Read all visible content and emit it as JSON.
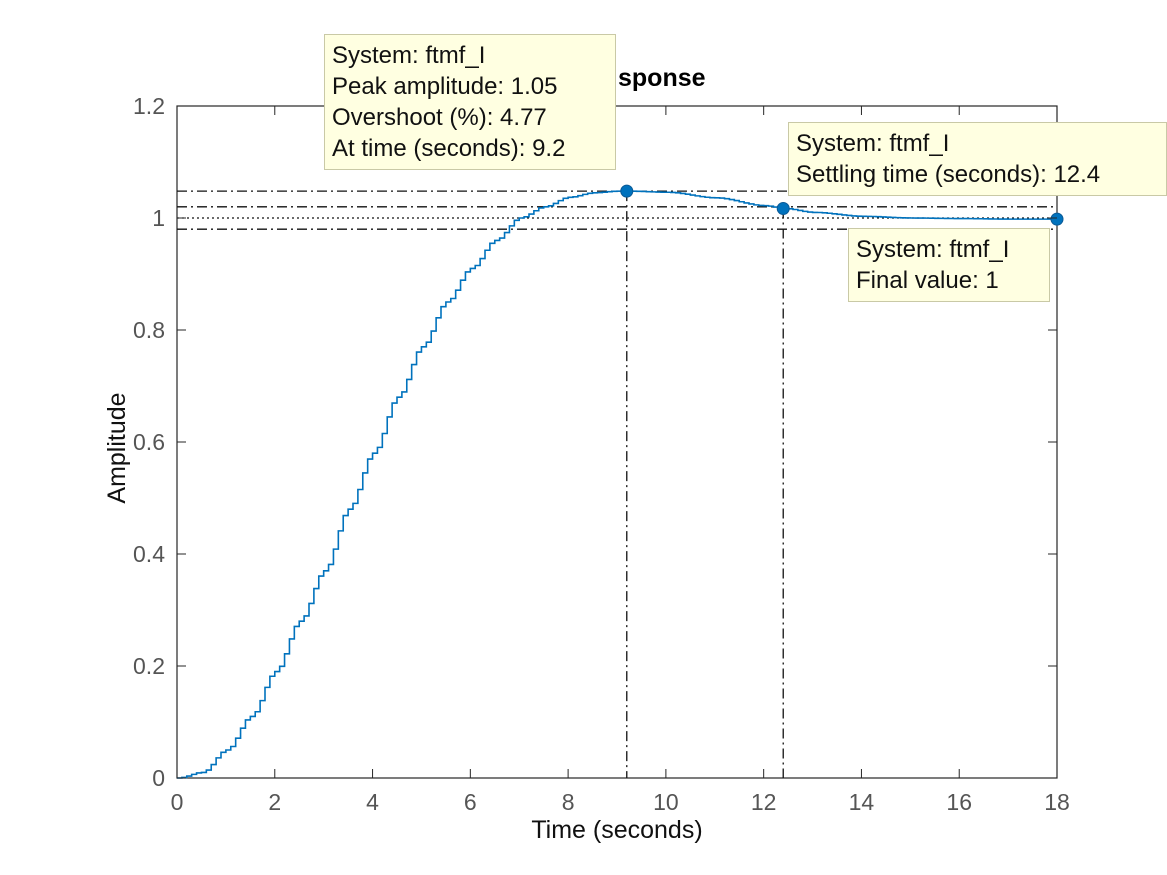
{
  "chart_data": {
    "type": "line",
    "title": "sponse",
    "xlabel": "Time (seconds)",
    "ylabel": "Amplitude",
    "xlim": [
      0,
      18
    ],
    "ylim": [
      0,
      1.2
    ],
    "xticks": [
      "0",
      "2",
      "4",
      "6",
      "8",
      "10",
      "12",
      "14",
      "16",
      "18"
    ],
    "yticks": [
      "0",
      "0.2",
      "0.4",
      "0.6",
      "0.8",
      "1",
      "1.2"
    ],
    "grid": false,
    "series": [
      {
        "color": "#0072bd",
        "style": "stairs",
        "x": [
          0,
          0.5,
          1,
          1.5,
          2,
          2.5,
          3,
          3.5,
          4,
          4.5,
          5,
          5.5,
          6,
          6.5,
          7,
          7.5,
          8,
          8.5,
          9,
          9.2,
          10,
          11,
          12,
          12.4,
          13,
          14,
          15,
          16,
          17,
          18
        ],
        "y": [
          0,
          0.01,
          0.05,
          0.11,
          0.19,
          0.28,
          0.37,
          0.48,
          0.58,
          0.68,
          0.77,
          0.85,
          0.91,
          0.96,
          1.0,
          1.02,
          1.037,
          1.045,
          1.048,
          1.048,
          1.046,
          1.036,
          1.022,
          1.017,
          1.01,
          1.003,
          1.0,
          0.999,
          0.998,
          0.998
        ]
      }
    ],
    "markers": [
      {
        "x": 9.2,
        "y": 1.048,
        "vline": true
      },
      {
        "x": 12.4,
        "y": 1.017,
        "vline": true
      },
      {
        "x": 18,
        "y": 0.998,
        "vline": false
      }
    ],
    "reference_lines": [
      {
        "y": 1.048,
        "style": "dashdot"
      },
      {
        "y": 1.02,
        "style": "dashdot"
      },
      {
        "y": 1.0,
        "style": "dotted"
      },
      {
        "y": 0.98,
        "style": "dashdot"
      }
    ],
    "datatips": [
      {
        "lines": [
          "System: ftmf_I",
          "Peak amplitude: 1.05",
          "Overshoot (%): 4.77",
          "At time (seconds): 9.2"
        ]
      },
      {
        "lines": [
          "System: ftmf_I",
          "Settling time (seconds): 12.4"
        ]
      },
      {
        "lines": [
          "System: ftmf_I",
          "Final value: 1"
        ]
      }
    ]
  }
}
